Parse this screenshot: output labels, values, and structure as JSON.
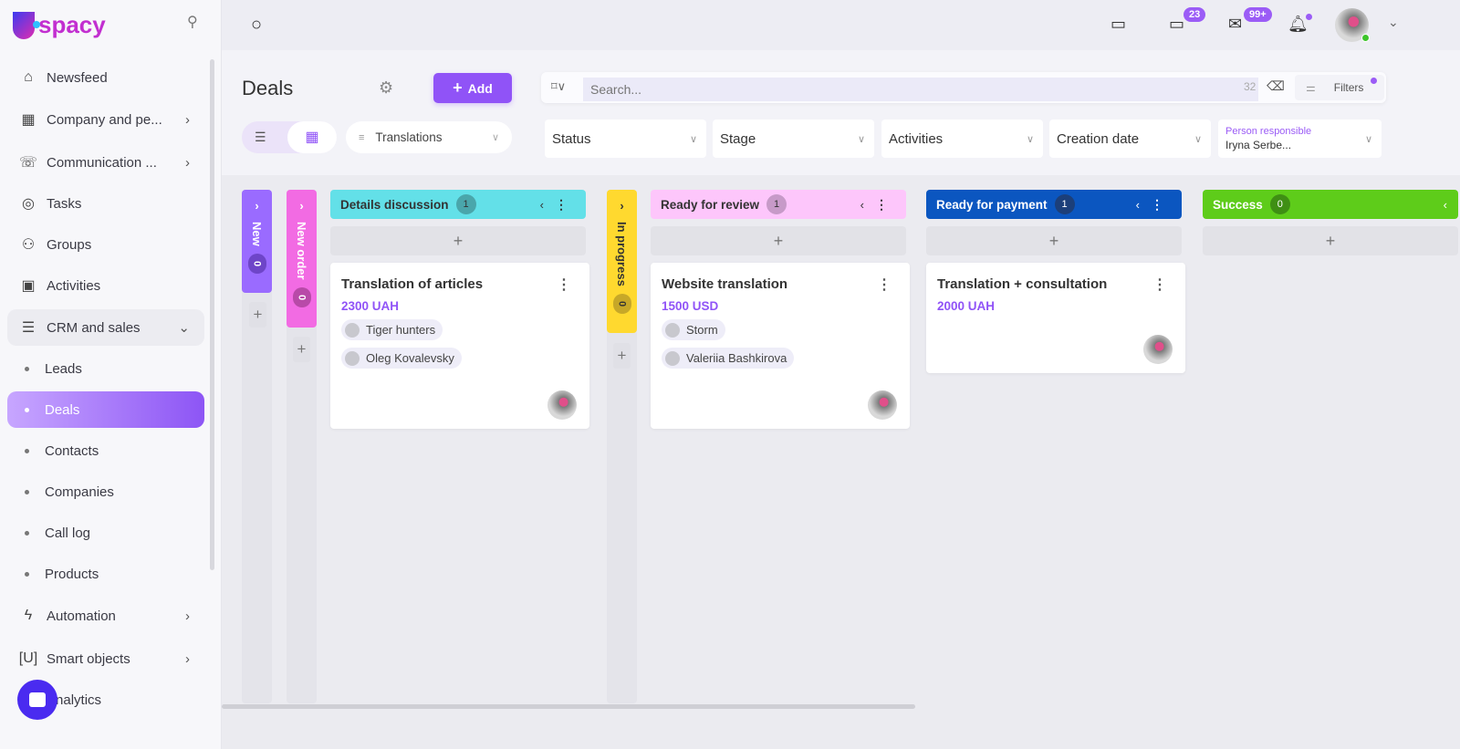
{
  "app": {
    "logo": "spacy"
  },
  "sidebar": {
    "items": [
      {
        "label": "Newsfeed",
        "icon": "home-icon"
      },
      {
        "label": "Company and pe...",
        "icon": "building-icon",
        "chevron": true
      },
      {
        "label": "Communication ...",
        "icon": "chat-phone-icon",
        "chevron": true
      },
      {
        "label": "Tasks",
        "icon": "check-circle-icon"
      },
      {
        "label": "Groups",
        "icon": "users-icon"
      },
      {
        "label": "Activities",
        "icon": "calendar-icon"
      },
      {
        "label": "CRM and sales",
        "icon": "database-icon",
        "expanded": true
      },
      {
        "label": "Leads"
      },
      {
        "label": "Deals",
        "active": true
      },
      {
        "label": "Contacts"
      },
      {
        "label": "Companies"
      },
      {
        "label": "Call log"
      },
      {
        "label": "Products"
      },
      {
        "label": "Automation",
        "icon": "bolt-icon",
        "chevron": true
      },
      {
        "label": "Smart objects",
        "icon": "scan-icon",
        "chevron": true
      },
      {
        "label": "Analytics",
        "icon": "chart-icon"
      }
    ]
  },
  "topbar": {
    "chat_badge": "23",
    "mail_badge": "99+",
    "bell_dot": true
  },
  "header": {
    "title": "Deals",
    "add_label": "Add",
    "pipeline": "Translations",
    "search_placeholder": "Search...",
    "search_count": "32",
    "filters_label": "Filters",
    "filters": [
      {
        "label": "Status"
      },
      {
        "label": "Stage"
      },
      {
        "label": "Activities"
      },
      {
        "label": "Creation date"
      }
    ],
    "person": {
      "label": "Person responsible",
      "value": "Iryna Serbe..."
    }
  },
  "board": {
    "columns": [
      {
        "name": "New",
        "count": "0",
        "color": "#9a6bff",
        "collapsed": true
      },
      {
        "name": "New order",
        "count": "0",
        "color": "#f26be3",
        "collapsed": true
      },
      {
        "name": "Details discussion",
        "count": "1",
        "color": "#63e0e8"
      },
      {
        "name": "In progress",
        "count": "0",
        "color": "#ffd92f",
        "collapsed": true
      },
      {
        "name": "Ready for review",
        "count": "1",
        "color": "#fdc6fb"
      },
      {
        "name": "Ready for payment",
        "count": "1",
        "color": "#0b56c0"
      },
      {
        "name": "Success",
        "count": "0",
        "color": "#5ecc1a"
      }
    ],
    "cards": [
      {
        "title": "Translation of articles",
        "amount": "2300 UAH",
        "company": "Tiger hunters",
        "contact": "Oleg Kovalevsky"
      },
      {
        "title": "Website translation",
        "amount": "1500 USD",
        "company": "Storm",
        "contact": "Valeriia Bashkirova"
      },
      {
        "title": "Translation + consultation",
        "amount": "2000 UAH"
      }
    ]
  }
}
